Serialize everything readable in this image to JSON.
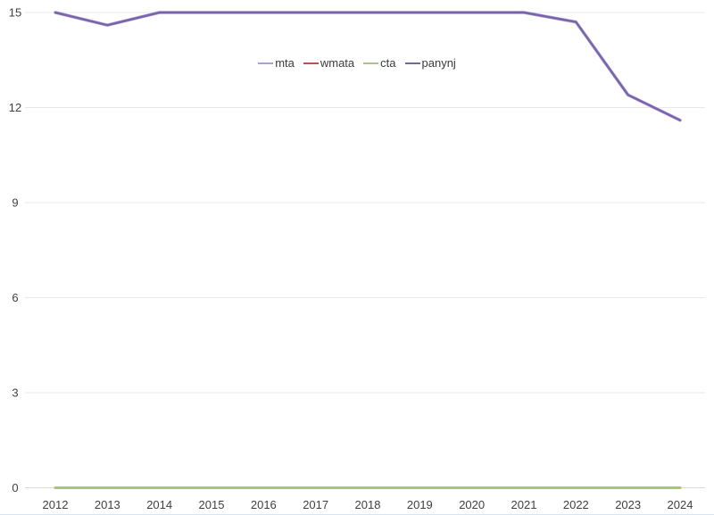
{
  "chart_data": {
    "type": "line",
    "title": "",
    "xlabel": "",
    "ylabel": "",
    "categories": [
      "2012",
      "2013",
      "2014",
      "2015",
      "2016",
      "2017",
      "2018",
      "2019",
      "2020",
      "2021",
      "2022",
      "2023",
      "2024"
    ],
    "series": [
      {
        "name": "mta",
        "color": "#a6a2d4",
        "values": [
          15,
          14.6,
          15,
          15,
          15,
          15,
          15,
          15,
          15,
          15,
          14.7,
          12.4,
          11.6
        ]
      },
      {
        "name": "wmata",
        "color": "#c0504d",
        "values": [
          0,
          0,
          0,
          0,
          0,
          0,
          0,
          0,
          0,
          0,
          0,
          0,
          0
        ]
      },
      {
        "name": "cta",
        "color": "#aac47e",
        "values": [
          0,
          0,
          0,
          0,
          0,
          0,
          0,
          0,
          0,
          0,
          0,
          0,
          0
        ]
      },
      {
        "name": "panynj",
        "color": "#7b62a8",
        "values": [
          15,
          14.6,
          15,
          15,
          15,
          15,
          15,
          15,
          15,
          15,
          14.7,
          12.4,
          11.6
        ]
      }
    ],
    "overlap_note": "mta line is hidden directly beneath panynj; wmata line is hidden beneath cta at 0",
    "y_ticks": [
      0,
      3,
      6,
      9,
      12,
      15
    ],
    "ylim": [
      0,
      15
    ],
    "grid": "horizontal",
    "legend_position": "top-center"
  },
  "colors": {
    "gridline": "#e8e8e8",
    "zero_axis": "#d9d9d9",
    "tick_text": "#404040",
    "legend_text": "#3b3b3b",
    "bottom_border": "#d9e4f1",
    "background": "#ffffff"
  }
}
